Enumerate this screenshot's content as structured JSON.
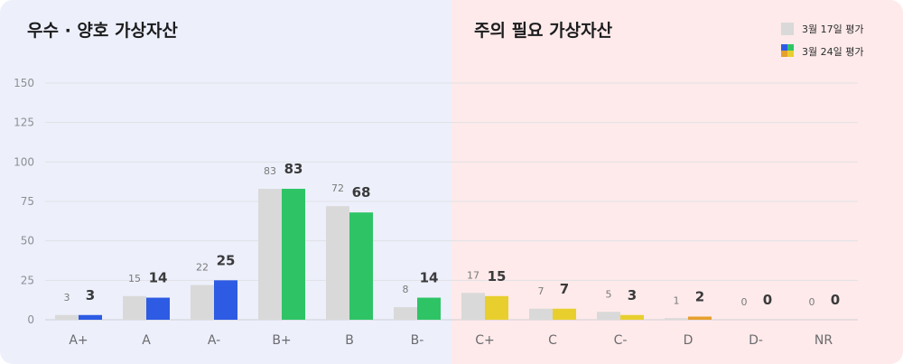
{
  "chart_data": {
    "type": "bar",
    "panels": [
      {
        "title": "우수 · 양호 가상자산"
      },
      {
        "title": "주의 필요 가상자산"
      }
    ],
    "categories": [
      "A+",
      "A",
      "A-",
      "B+",
      "B",
      "B-",
      "C+",
      "C",
      "C-",
      "D",
      "D-",
      "NR"
    ],
    "series": [
      {
        "name": "3월 17일 평가",
        "values": [
          3,
          15,
          22,
          83,
          72,
          8,
          17,
          7,
          5,
          1,
          0,
          0
        ],
        "color": "#d9d9d9"
      },
      {
        "name": "3월 24일 평가",
        "values": [
          3,
          14,
          25,
          83,
          68,
          14,
          15,
          7,
          3,
          2,
          0,
          0
        ],
        "colors": [
          "#2d5be3",
          "#2d5be3",
          "#2d5be3",
          "#2ec466",
          "#2ec466",
          "#2ec466",
          "#e8cf2e",
          "#e8cf2e",
          "#e8cf2e",
          "#e6a02e",
          "#e6a02e",
          "#e6a02e"
        ]
      }
    ],
    "ylim": [
      0,
      150
    ],
    "yticks": [
      0,
      25,
      50,
      75,
      100,
      125,
      150
    ],
    "grid": true,
    "legend_position": "top-right",
    "xlabel": "",
    "ylabel": ""
  },
  "theme": {
    "left_bg": "#edf0fb",
    "right_bg": "#feeaea",
    "grid_color": "#e1e1e6",
    "axis_color": "#d0d0d6",
    "legend_new_swatch": [
      "#2d5be3",
      "#2ec466",
      "#e8cf2e",
      "#e6a02e"
    ]
  }
}
